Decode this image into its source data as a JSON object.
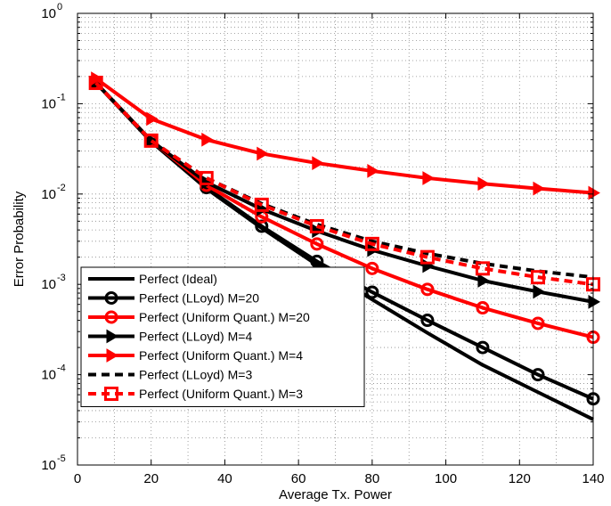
{
  "chart_data": {
    "type": "line",
    "xlabel": "Average Tx. Power",
    "ylabel": "Error Probability",
    "xlim": [
      0,
      140
    ],
    "ylim": [
      1e-05,
      1
    ],
    "yscale": "log",
    "xticks": [
      0,
      20,
      40,
      60,
      80,
      100,
      120,
      140
    ],
    "yticks": [
      {
        "value": 1e-05,
        "base": "10",
        "exp": "-5"
      },
      {
        "value": 0.0001,
        "base": "10",
        "exp": "-4"
      },
      {
        "value": 0.001,
        "base": "10",
        "exp": "-3"
      },
      {
        "value": 0.01,
        "base": "10",
        "exp": "-2"
      },
      {
        "value": 0.1,
        "base": "10",
        "exp": "-1"
      },
      {
        "value": 1,
        "base": "10",
        "exp": "0"
      }
    ],
    "grid": true,
    "legend_position": "bottom-left",
    "series": [
      {
        "name": "Perfect (Ideal)",
        "color": "#000000",
        "dash": "solid",
        "marker": "none",
        "x": [
          5,
          20,
          35,
          50,
          65,
          80,
          95,
          110,
          125,
          140
        ],
        "y": [
          0.17,
          0.038,
          0.0115,
          0.0042,
          0.00165,
          0.00068,
          0.00029,
          0.000128,
          6.4e-05,
          3.2e-05
        ]
      },
      {
        "name": "Perfect (LLoyd) M=20",
        "color": "#000000",
        "dash": "solid",
        "marker": "circle",
        "x": [
          5,
          20,
          35,
          50,
          65,
          80,
          95,
          110,
          125,
          140
        ],
        "y": [
          0.17,
          0.039,
          0.0118,
          0.0044,
          0.0018,
          0.00082,
          0.0004,
          0.0002,
          0.0001,
          5.4e-05
        ]
      },
      {
        "name": "Perfect (Uniform Quant.) M=20",
        "color": "#ff0000",
        "dash": "solid",
        "marker": "circle",
        "x": [
          5,
          20,
          35,
          50,
          65,
          80,
          95,
          110,
          125,
          140
        ],
        "y": [
          0.17,
          0.039,
          0.0125,
          0.0056,
          0.0028,
          0.0015,
          0.00088,
          0.00055,
          0.00037,
          0.00026
        ]
      },
      {
        "name": "Perfect (LLoyd) M=4",
        "color": "#000000",
        "dash": "solid",
        "marker": "triangle-right",
        "x": [
          5,
          20,
          35,
          50,
          65,
          80,
          95,
          110,
          125,
          140
        ],
        "y": [
          0.17,
          0.039,
          0.0135,
          0.0068,
          0.0039,
          0.0024,
          0.0016,
          0.0011,
          0.00083,
          0.00064
        ]
      },
      {
        "name": "Perfect (Uniform Quant.) M=4",
        "color": "#ff0000",
        "dash": "solid",
        "marker": "triangle-right",
        "x": [
          5,
          20,
          35,
          50,
          65,
          80,
          95,
          110,
          125,
          140
        ],
        "y": [
          0.19,
          0.068,
          0.04,
          0.028,
          0.022,
          0.018,
          0.015,
          0.013,
          0.0115,
          0.0103
        ]
      },
      {
        "name": "Perfect (LLoyd) M=3",
        "color": "#000000",
        "dash": "dashed",
        "marker": "none",
        "x": [
          5,
          20,
          35,
          50,
          65,
          80,
          95,
          110,
          125,
          140
        ],
        "y": [
          0.17,
          0.039,
          0.015,
          0.0078,
          0.0046,
          0.003,
          0.0022,
          0.0017,
          0.0014,
          0.0012
        ]
      },
      {
        "name": "Perfect (Uniform Quant.) M=3",
        "color": "#ff0000",
        "dash": "dashed",
        "marker": "square",
        "x": [
          5,
          20,
          35,
          50,
          65,
          80,
          95,
          110,
          125,
          140
        ],
        "y": [
          0.17,
          0.039,
          0.015,
          0.0076,
          0.0044,
          0.0028,
          0.002,
          0.0015,
          0.0012,
          0.001
        ]
      }
    ]
  }
}
